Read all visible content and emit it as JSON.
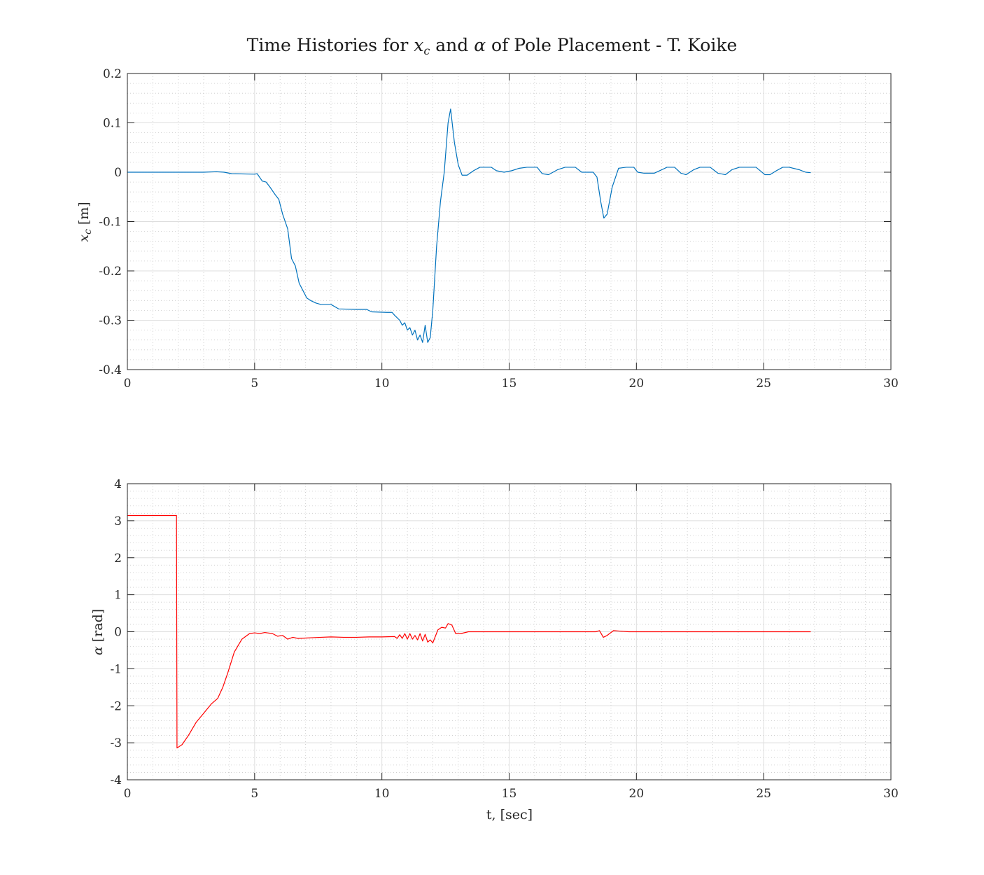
{
  "figure": {
    "title_prefix": "Time Histories for ",
    "title_var1": "x",
    "title_var1_sub": "c",
    "title_mid": " and ",
    "title_var2": "α",
    "title_suffix": " of Pole Placement - T. Koike"
  },
  "chart_data": [
    {
      "type": "line",
      "ylabel_var": "x",
      "ylabel_sub": "c",
      "ylabel_unit": " [m]",
      "xlim": [
        0,
        30
      ],
      "ylim": [
        -0.4,
        0.2
      ],
      "xticks": [
        0,
        5,
        10,
        15,
        20,
        25,
        30
      ],
      "xtick_labels": [
        "0",
        "5",
        "10",
        "15",
        "20",
        "25",
        "30"
      ],
      "yticks": [
        -0.4,
        -0.3,
        -0.2,
        -0.1,
        0,
        0.1,
        0.2
      ],
      "ytick_labels": [
        "-0.4",
        "-0.3",
        "-0.2",
        "-0.1",
        "0",
        "0.1",
        "0.2"
      ],
      "grid": true,
      "minor_grid": true,
      "color": "#0072BD",
      "series": [
        {
          "x": [
            0,
            3.0,
            3.5,
            3.8,
            4.1,
            5.0,
            5.1,
            5.3,
            5.45,
            5.6,
            5.8,
            5.95,
            6.1,
            6.3,
            6.45,
            6.6,
            6.75,
            6.9,
            7.05,
            7.2,
            7.4,
            7.6,
            8.0,
            8.3,
            9.0,
            9.4,
            9.6,
            10.2,
            10.4,
            10.5,
            10.6,
            10.7,
            10.8,
            10.9,
            11.0,
            11.1,
            11.2,
            11.3,
            11.4,
            11.5,
            11.6,
            11.7,
            11.8,
            11.9,
            12.0,
            12.15,
            12.3,
            12.45,
            12.6,
            12.7,
            12.85,
            13.0,
            13.15,
            13.35,
            13.6,
            13.85,
            14.3,
            14.5,
            14.8,
            15.1,
            15.4,
            15.7,
            16.1,
            16.3,
            16.55,
            16.9,
            17.2,
            17.6,
            17.85,
            18.3,
            18.45,
            18.6,
            18.72,
            18.85,
            19.05,
            19.3,
            19.6,
            19.9,
            20.05,
            20.3,
            20.7,
            21.0,
            21.2,
            21.5,
            21.75,
            21.95,
            22.25,
            22.5,
            22.9,
            23.2,
            23.5,
            23.75,
            24.05,
            24.4,
            24.7,
            25.05,
            25.25,
            25.5,
            25.75,
            26.0,
            26.4,
            26.65,
            26.85
          ],
          "y": [
            0,
            0,
            0.001,
            0,
            -0.003,
            -0.004,
            -0.003,
            -0.018,
            -0.02,
            -0.03,
            -0.045,
            -0.055,
            -0.085,
            -0.115,
            -0.175,
            -0.19,
            -0.225,
            -0.24,
            -0.255,
            -0.26,
            -0.265,
            -0.268,
            -0.268,
            -0.277,
            -0.278,
            -0.278,
            -0.283,
            -0.284,
            -0.284,
            -0.29,
            -0.295,
            -0.3,
            -0.31,
            -0.305,
            -0.32,
            -0.315,
            -0.33,
            -0.32,
            -0.34,
            -0.33,
            -0.345,
            -0.31,
            -0.345,
            -0.335,
            -0.28,
            -0.15,
            -0.06,
            0.0,
            0.1,
            0.128,
            0.06,
            0.015,
            -0.006,
            -0.006,
            0.003,
            0.01,
            0.01,
            0.003,
            0.0,
            0.003,
            0.008,
            0.01,
            0.01,
            -0.003,
            -0.005,
            0.005,
            0.01,
            0.01,
            0.0,
            0.0,
            -0.01,
            -0.06,
            -0.093,
            -0.085,
            -0.03,
            0.008,
            0.01,
            0.01,
            0.0,
            -0.002,
            -0.002,
            0.005,
            0.01,
            0.01,
            -0.002,
            -0.005,
            0.005,
            0.01,
            0.01,
            -0.002,
            -0.005,
            0.005,
            0.01,
            0.01,
            0.01,
            -0.005,
            -0.005,
            0.003,
            0.01,
            0.01,
            0.005,
            0.0,
            -0.001
          ]
        }
      ]
    },
    {
      "type": "line",
      "ylabel_var": "α",
      "ylabel_unit": " [rad]",
      "xlabel": "t, [sec]",
      "xlim": [
        0,
        30
      ],
      "ylim": [
        -4,
        4
      ],
      "xticks": [
        0,
        5,
        10,
        15,
        20,
        25,
        30
      ],
      "xtick_labels": [
        "0",
        "5",
        "10",
        "15",
        "20",
        "25",
        "30"
      ],
      "yticks": [
        -4,
        -3,
        -2,
        -1,
        0,
        1,
        2,
        3,
        4
      ],
      "ytick_labels": [
        "-4",
        "-3",
        "-2",
        "-1",
        "0",
        "1",
        "2",
        "3",
        "4"
      ],
      "grid": true,
      "minor_grid": true,
      "color": "#FF0000",
      "series": [
        {
          "x": [
            0,
            1.93,
            1.93,
            1.95,
            2.15,
            2.4,
            2.7,
            3.0,
            3.3,
            3.55,
            3.75,
            3.95,
            4.2,
            4.5,
            4.8,
            5.0,
            5.2,
            5.4,
            5.7,
            5.9,
            6.1,
            6.3,
            6.5,
            6.7,
            7.0,
            7.3,
            7.6,
            8.0,
            8.5,
            9.0,
            9.5,
            10.0,
            10.5,
            10.6,
            10.7,
            10.8,
            10.9,
            11.0,
            11.1,
            11.2,
            11.3,
            11.4,
            11.5,
            11.6,
            11.7,
            11.8,
            11.9,
            12.0,
            12.2,
            12.35,
            12.5,
            12.6,
            12.75,
            12.9,
            13.1,
            13.4,
            13.8,
            14.5,
            16.0,
            17.0,
            18.0,
            18.4,
            18.55,
            18.7,
            18.85,
            19.1,
            19.3,
            19.7,
            20.5,
            21.5,
            22.5,
            23.5,
            24.5,
            25.5,
            26.5,
            26.85
          ],
          "y": [
            3.14,
            3.14,
            3.14,
            -3.14,
            -3.05,
            -2.8,
            -2.45,
            -2.2,
            -1.95,
            -1.8,
            -1.5,
            -1.1,
            -0.55,
            -0.2,
            -0.05,
            -0.03,
            -0.05,
            -0.02,
            -0.05,
            -0.12,
            -0.1,
            -0.2,
            -0.15,
            -0.18,
            -0.17,
            -0.16,
            -0.15,
            -0.14,
            -0.15,
            -0.15,
            -0.14,
            -0.14,
            -0.13,
            -0.18,
            -0.08,
            -0.18,
            -0.05,
            -0.2,
            -0.05,
            -0.2,
            -0.1,
            -0.22,
            -0.05,
            -0.25,
            -0.07,
            -0.28,
            -0.22,
            -0.3,
            0.05,
            0.12,
            0.1,
            0.22,
            0.18,
            -0.05,
            -0.05,
            0.0,
            0.0,
            0.0,
            0.0,
            0.0,
            0.0,
            0.0,
            0.03,
            -0.15,
            -0.1,
            0.03,
            0.02,
            0.0,
            0.0,
            0.0,
            0.0,
            0.0,
            0.0,
            0.0,
            0.0,
            0.0
          ]
        }
      ]
    }
  ]
}
